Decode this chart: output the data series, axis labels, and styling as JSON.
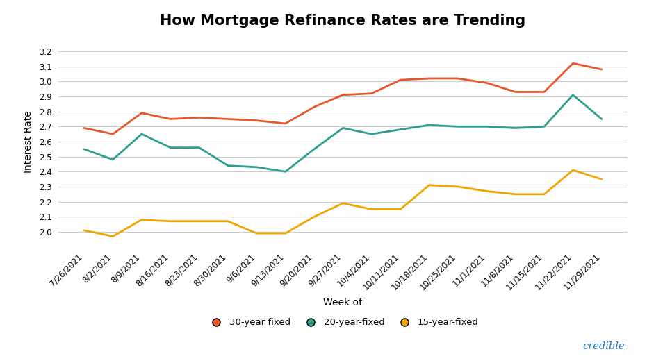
{
  "title": "How Mortgage Refinance Rates are Trending",
  "xlabel": "Week of",
  "ylabel": "Interest Rate",
  "x_labels": [
    "7/26/2021",
    "8/2/2021",
    "8/9/2021",
    "8/16/2021",
    "8/23/2021",
    "8/30/2021",
    "9/6/2021",
    "9/13/2021",
    "9/20/2021",
    "9/27/2021",
    "10/4/2021",
    "10/11/2021",
    "10/18/2021",
    "10/25/2021",
    "11/1/2021",
    "11/8/2021",
    "11/15/2021",
    "11/22/2021",
    "11/29/2021"
  ],
  "series_order": [
    "30-year fixed",
    "20-year-fixed",
    "15-year-fixed"
  ],
  "series": {
    "30-year fixed": {
      "color": "#E8562A",
      "values": [
        2.69,
        2.65,
        2.79,
        2.75,
        2.76,
        2.75,
        2.74,
        2.72,
        2.83,
        2.91,
        2.92,
        3.01,
        3.02,
        3.02,
        2.99,
        2.93,
        2.93,
        3.12,
        3.08
      ]
    },
    "20-year-fixed": {
      "color": "#2E9E8E",
      "values": [
        2.55,
        2.48,
        2.65,
        2.56,
        2.56,
        2.44,
        2.43,
        2.4,
        2.55,
        2.69,
        2.65,
        2.68,
        2.71,
        2.7,
        2.7,
        2.69,
        2.7,
        2.91,
        2.75
      ]
    },
    "15-year-fixed": {
      "color": "#F0A500",
      "values": [
        2.01,
        1.97,
        2.08,
        2.07,
        2.07,
        2.07,
        1.99,
        1.99,
        2.1,
        2.19,
        2.15,
        2.15,
        2.31,
        2.3,
        2.27,
        2.25,
        2.25,
        2.41,
        2.35
      ]
    }
  },
  "ylim": [
    1.9,
    3.3
  ],
  "yticks": [
    2.0,
    2.1,
    2.2,
    2.3,
    2.4,
    2.5,
    2.6,
    2.7,
    2.8,
    2.9,
    3.0,
    3.1,
    3.2
  ],
  "background_color": "#ffffff",
  "grid_color": "#cccccc",
  "title_fontsize": 15,
  "axis_label_fontsize": 10,
  "tick_fontsize": 8.5,
  "legend_fontsize": 9.5,
  "credible_color": "#1A73C8"
}
